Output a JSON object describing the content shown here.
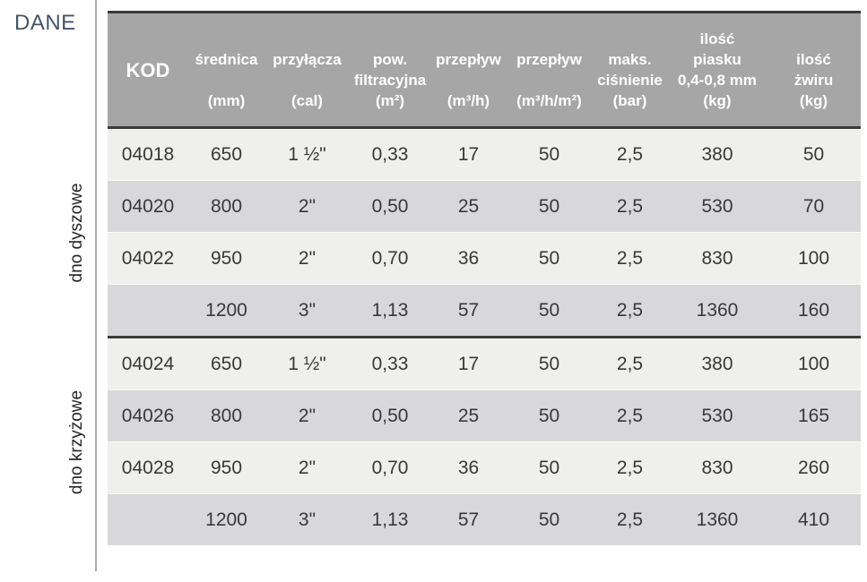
{
  "page": {
    "label": "DANE"
  },
  "colors": {
    "title": "#44546a",
    "header_bg": "#a6a6a6",
    "row_light": "#efefee",
    "row_dark": "#d8d8da",
    "border_dark": "#3b3b3b"
  },
  "groups": [
    {
      "label": "dno dyszowe"
    },
    {
      "label": "dno krzyżowe"
    }
  ],
  "table": {
    "header": {
      "kod": "KOD",
      "cols": [
        {
          "l1": "",
          "l2": "średnica",
          "l3": "",
          "l4": "(mm)"
        },
        {
          "l1": "",
          "l2": "przyłącza",
          "l3": "",
          "l4": "(cal)"
        },
        {
          "l1": "",
          "l2": "pow.",
          "l3": "filtracyjna",
          "l4": "(m²)"
        },
        {
          "l1": "",
          "l2": "przepływ",
          "l3": "",
          "l4": "(m³/h)"
        },
        {
          "l1": "",
          "l2": "przepływ",
          "l3": "",
          "l4": "(m³/h/m²)"
        },
        {
          "l1": "",
          "l2": "maks.",
          "l3": "ciśnienie",
          "l4": "(bar)"
        },
        {
          "l1": "ilość",
          "l2": "piasku",
          "l3": "0,4-0,8 mm",
          "l4": "(kg)"
        },
        {
          "l1": "",
          "l2": "ilość",
          "l3": "żwiru",
          "l4": "(kg)"
        }
      ]
    },
    "rows": [
      [
        "04018",
        "650",
        "1 ½\"",
        "0,33",
        "17",
        "50",
        "2,5",
        "380",
        "50"
      ],
      [
        "04020",
        "800",
        "2\"",
        "0,50",
        "25",
        "50",
        "2,5",
        "530",
        "70"
      ],
      [
        "04022",
        "950",
        "2\"",
        "0,70",
        "36",
        "50",
        "2,5",
        "830",
        "100"
      ],
      [
        "",
        "1200",
        "3\"",
        "1,13",
        "57",
        "50",
        "2,5",
        "1360",
        "160"
      ],
      [
        "04024",
        "650",
        "1 ½\"",
        "0,33",
        "17",
        "50",
        "2,5",
        "380",
        "100"
      ],
      [
        "04026",
        "800",
        "2\"",
        "0,50",
        "25",
        "50",
        "2,5",
        "530",
        "165"
      ],
      [
        "04028",
        "950",
        "2\"",
        "0,70",
        "36",
        "50",
        "2,5",
        "830",
        "260"
      ],
      [
        "",
        "1200",
        "3\"",
        "1,13",
        "57",
        "50",
        "2,5",
        "1360",
        "410"
      ]
    ]
  }
}
